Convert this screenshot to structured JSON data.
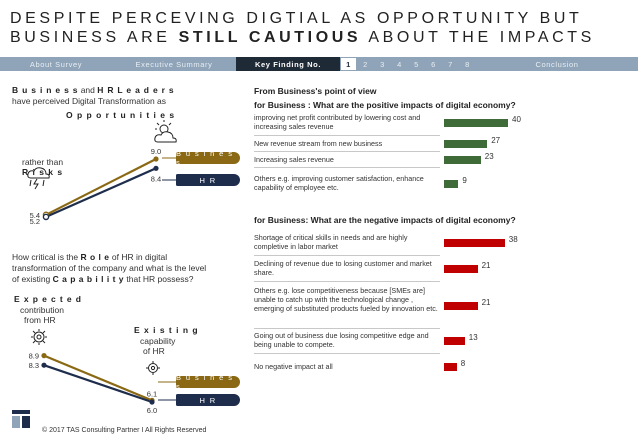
{
  "title": {
    "line1": "DESPITE PERCEVING DIGTIAL AS OPPORTUNITY BUT",
    "line2_pre": "BUSINESS ARE ",
    "line2_bold": "STILL CAUTIOUS",
    "line2_post": " ABOUT THE IMPACTS"
  },
  "nav": {
    "tabs": [
      "About Survey",
      "Executive Summary",
      "Key Finding No."
    ],
    "numbers": [
      "1",
      "2",
      "3",
      "4",
      "5",
      "6",
      "7",
      "8"
    ],
    "conclusion": "Conclusion"
  },
  "colors": {
    "business": "#8b6914",
    "hr": "#1f2d4d",
    "positive": "#3f6b38",
    "negative": "#c00000",
    "nav": "#8fa4b8"
  },
  "left_top": {
    "heading_bold1": "B u s i n e s s",
    "heading_and": " and ",
    "heading_bold2": "H R  L e a d e r s",
    "heading_line2": "have perceived Digital Transformation as",
    "opportunities": "O p p o r t u n i t i e s",
    "rather_than": "rather  than",
    "risks": "R i s k s",
    "business_label": "B u s i n e s s",
    "hr_label": "H R",
    "business": {
      "from": 5.4,
      "to": 9.0,
      "from_label": "5.4",
      "to_label": "9.0"
    },
    "hr": {
      "from": 5.2,
      "to": 8.4,
      "from_label": "5.2",
      "to_label": "8.4"
    }
  },
  "left_bottom": {
    "question_a": "How critical is the ",
    "role": "R o l e",
    "question_b": " of HR in digital",
    "question_line2": "transformation of the company and what is the level",
    "question_c": "of existing ",
    "capability": "C a p a b i l i t y",
    "question_d": "  that HR possess?",
    "expected": "E x p e c t e d",
    "contribution": "contribution",
    "from_hr": "from HR",
    "existing": "E x i s t i n g",
    "capability_of": "capability",
    "of_hr": "of HR",
    "business_label": "B u s i n e s s",
    "hr_label": "H R",
    "business": {
      "from": 8.9,
      "to": 6.1,
      "from_label": "8.9",
      "to_label": "6.1"
    },
    "hr": {
      "from": 8.3,
      "to": 6.0,
      "from_label": "8.3",
      "to_label": "6.0"
    }
  },
  "right": {
    "pov": "From Business's point of view",
    "positive_q": "for Business : What are the positive impacts of digital economy?",
    "negative_q": "for Business: What are the negative impacts of digital economy?"
  },
  "chart_data": [
    {
      "type": "bar",
      "title": "for Business : What are the positive impacts of digital economy?",
      "categories": [
        "improving net profit contributed by lowering cost and increasing sales revenue",
        "New revenue stream from new business",
        "Increasing sales revenue",
        "Others e.g. improving customer satisfaction, enhance capability of employee etc."
      ],
      "values": [
        40,
        27,
        23,
        9
      ]
    },
    {
      "type": "bar",
      "title": "for Business: What are the negative impacts of digital economy?",
      "categories": [
        "Shortage of critical skills in needs and are highly completive in labor market",
        "Declining of revenue due to losing customer and market share.",
        "Others e.g. lose competitiveness because [SMEs are] unable to catch up with  the technological change , emerging of substituted products fueled by innovation etc.",
        "Going out of business due losing competitive edge and being unable to compete.",
        "No negative impact at all"
      ],
      "values": [
        38,
        21,
        21,
        13,
        8
      ]
    }
  ],
  "footer": "© 2017 TAS Consulting Partner  I  All Rights Reserved"
}
